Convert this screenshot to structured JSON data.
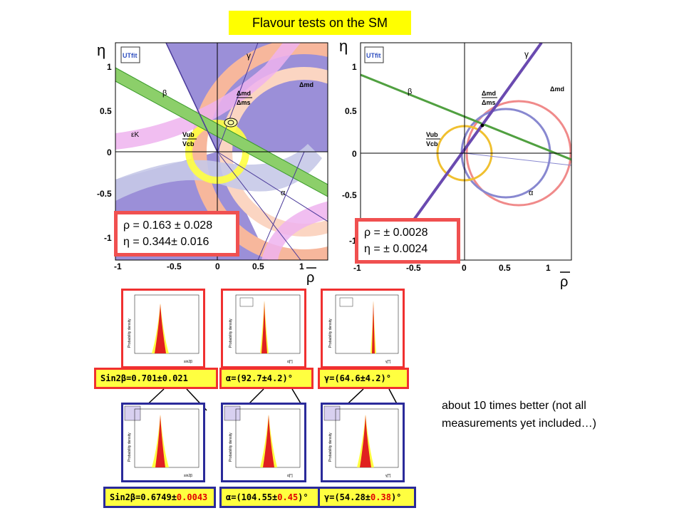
{
  "title": "Flavour  tests on the SM",
  "colors": {
    "red_frame": "#f05050",
    "blue_frame": "#2a2a9a",
    "yellow": "#ffff40",
    "fill_purple": "#9b8fd8",
    "fill_salmon": "#f7b79c",
    "fill_pink": "#efb3ef",
    "fill_green": "#8ccf6a",
    "fill_blue": "#c7c9e8"
  },
  "plot_left": {
    "logo": "UTfit",
    "y_axis_symbol": "η",
    "x_axis_symbol": "ρ",
    "x_ticks": [
      "-1",
      "-0.5",
      "0",
      "0.5",
      "1"
    ],
    "y_ticks": [
      "1",
      "0.5",
      "0",
      "-0.5",
      "-1"
    ],
    "labels": {
      "gamma": "γ",
      "beta": "β",
      "epsilon": "εK",
      "dmd": "Δmd",
      "dmd_dms_num": "Δmd",
      "dmd_dms_den": "Δms",
      "vub": "Vub",
      "vcb": "Vcb",
      "alpha": "α"
    },
    "result_rho": "ρ = 0.163 ± 0.028",
    "result_eta": "η  = 0.344± 0.016"
  },
  "plot_right": {
    "logo": "UTfit",
    "y_axis_symbol": "η",
    "x_axis_symbol": "ρ",
    "x_ticks": [
      "-1",
      "-0.5",
      "0",
      "0.5",
      "1"
    ],
    "y_ticks": [
      "1",
      "0.5",
      "0",
      "-0.5",
      "-1"
    ],
    "labels": {
      "gamma": "γ",
      "beta": "β",
      "dmd": "Δmd",
      "dmd_dms_num": "Δmd",
      "dmd_dms_den": "Δms",
      "vub": "Vub",
      "vcb": "Vcb",
      "alpha": "α"
    },
    "result_rho": "ρ =    ± 0.0028",
    "result_eta": "η  =  ± 0.0024"
  },
  "top_row": [
    {
      "ylabel": "Probability density",
      "xlabel": "sin2β",
      "caption_sym": "Sin2β",
      "caption_val": "=0.701±0.021"
    },
    {
      "ylabel": "Probability density",
      "xlabel": "α[°]",
      "caption_sym": "α",
      "caption_val": "=(92.7±4.2)°"
    },
    {
      "ylabel": "Probability density",
      "xlabel": "γ[°]",
      "caption_sym": "γ",
      "caption_val": "=(64.6±4.2)°"
    }
  ],
  "bottom_row": [
    {
      "ylabel": "Probability density",
      "xlabel": "sin2β",
      "caption_sym": "Sin2β",
      "caption_val": "=0.6749±",
      "caption_err": "0.0043",
      "caption_tail": ""
    },
    {
      "ylabel": "Probability density",
      "xlabel": "α[°]",
      "caption_sym": "α",
      "caption_val": "=(104.55±",
      "caption_err": "0.45",
      "caption_tail": ")°"
    },
    {
      "ylabel": "Probability density",
      "xlabel": "γ[°]",
      "caption_sym": "γ",
      "caption_val": "=(54.28±",
      "caption_err": "0.38",
      "caption_tail": " )°"
    }
  ],
  "note_line1": "about 10 times better (not all",
  "note_line2": "measurements yet included…)"
}
